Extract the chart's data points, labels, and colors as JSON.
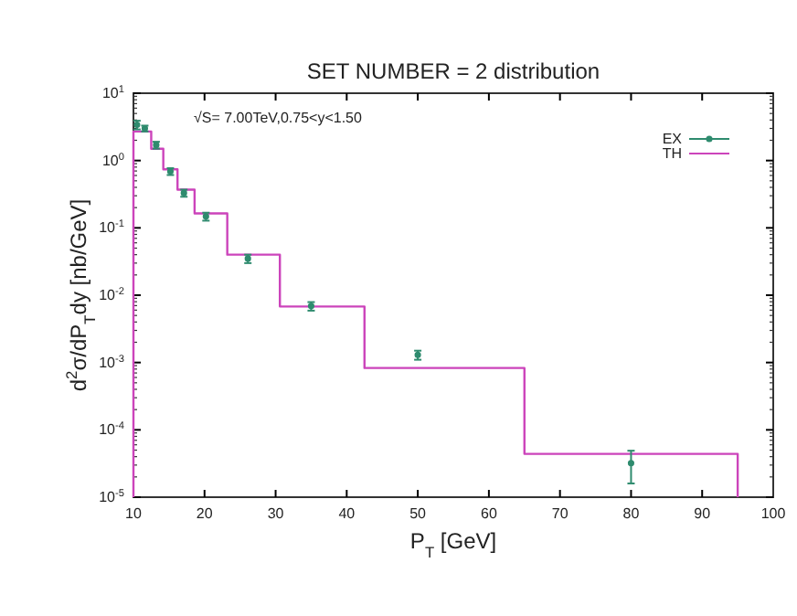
{
  "chart_data": {
    "type": "scatter",
    "title": "SET NUMBER =  2 distribution",
    "xlabel": "P$_{T}$ [GeV]",
    "ylabel": "d$^{2}$σ/dP$_{T}$dy [nb/GeV]",
    "annotations": [
      "√S=   7.00TeV,0.75<y<1.50"
    ],
    "log": "y",
    "legend": "top right",
    "xlim": [
      10,
      100
    ],
    "xticks": [
      10,
      20,
      30,
      40,
      50,
      60,
      70,
      80,
      90,
      100
    ],
    "ylim": [
      1e-05,
      10
    ],
    "yticks": [
      {
        "value": 1e-05,
        "label": "10$^{-5}$"
      },
      {
        "value": 0.0001,
        "label": "10$^{-4}$"
      },
      {
        "value": 0.001,
        "label": "10$^{-3}$"
      },
      {
        "value": 0.01,
        "label": "10$^{-2}$"
      },
      {
        "value": 0.1,
        "label": "10$^{-1}$"
      },
      {
        "value": 1,
        "label": "10$^{0}$"
      },
      {
        "value": 10,
        "label": "10$^{1}$"
      }
    ],
    "series": [
      {
        "name": "EX",
        "marker": "circle",
        "color": "#2e8b6e",
        "x": [
          10.5,
          11.6,
          13.2,
          15.2,
          17.1,
          20.2,
          26.1,
          35,
          50,
          80
        ],
        "values": [
          3.4,
          3.0,
          1.7,
          0.69,
          0.33,
          0.148,
          0.035,
          0.0069,
          0.0013,
          3.2e-05
        ],
        "errors": [
          0.5,
          0.3,
          0.2,
          0.08,
          0.04,
          0.02,
          0.005,
          0.001,
          0.0002,
          [
            1.6e-05,
            4.9e-05
          ]
        ]
      },
      {
        "name": "TH",
        "type": "histogram",
        "color": "#cc44bb",
        "bins": [
          10,
          12.5,
          14.2,
          16.2,
          18.6,
          23.2,
          30.6,
          42.5,
          65,
          95
        ],
        "values": [
          2.7,
          1.5,
          0.74,
          0.37,
          0.164,
          0.04,
          0.0068,
          0.00083,
          4.4e-05
        ]
      }
    ]
  }
}
